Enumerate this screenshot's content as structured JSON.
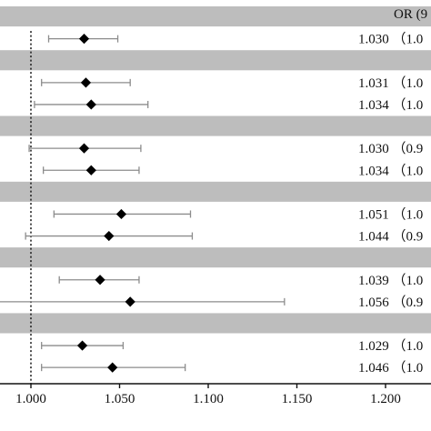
{
  "chart_data": {
    "type": "forest",
    "column_header": "OR (9",
    "x_axis": {
      "ticks": [
        1.0,
        1.05,
        1.1,
        1.15,
        1.2
      ],
      "tick_labels": [
        "1.000",
        "1.050",
        "1.100",
        "1.150",
        "1.200"
      ],
      "range": [
        1.0,
        1.2
      ],
      "reference_line": 1.0
    },
    "band_color": "#bdbdbd",
    "marker_color": "#000000",
    "whisker_color": "#8c8c8c",
    "rows": [
      {
        "kind": "band"
      },
      {
        "kind": "estimate",
        "or": 1.03,
        "lower": 1.01,
        "upper": 1.049,
        "label": "1.030 （1.0"
      },
      {
        "kind": "band"
      },
      {
        "kind": "estimate",
        "or": 1.031,
        "lower": 1.006,
        "upper": 1.056,
        "label": "1.031 （1.0"
      },
      {
        "kind": "estimate",
        "or": 1.034,
        "lower": 1.002,
        "upper": 1.066,
        "label": "1.034 （1.0"
      },
      {
        "kind": "band"
      },
      {
        "kind": "estimate",
        "or": 1.03,
        "lower": 0.999,
        "upper": 1.062,
        "label": "1.030 （0.9"
      },
      {
        "kind": "estimate",
        "or": 1.034,
        "lower": 1.007,
        "upper": 1.061,
        "label": "1.034 （1.0"
      },
      {
        "kind": "band"
      },
      {
        "kind": "estimate",
        "or": 1.051,
        "lower": 1.013,
        "upper": 1.09,
        "label": "1.051 （1.0"
      },
      {
        "kind": "estimate",
        "or": 1.044,
        "lower": 0.997,
        "upper": 1.091,
        "label": "1.044 （0.9"
      },
      {
        "kind": "band"
      },
      {
        "kind": "estimate",
        "or": 1.039,
        "lower": 1.016,
        "upper": 1.061,
        "label": "1.039 （1.0"
      },
      {
        "kind": "estimate",
        "or": 1.056,
        "lower": 0.969,
        "upper": 1.143,
        "label": "1.056 （0.9"
      },
      {
        "kind": "band"
      },
      {
        "kind": "estimate",
        "or": 1.029,
        "lower": 1.006,
        "upper": 1.052,
        "label": "1.029 （1.0"
      },
      {
        "kind": "estimate",
        "or": 1.046,
        "lower": 1.006,
        "upper": 1.087,
        "label": "1.046 （1.0"
      }
    ]
  }
}
